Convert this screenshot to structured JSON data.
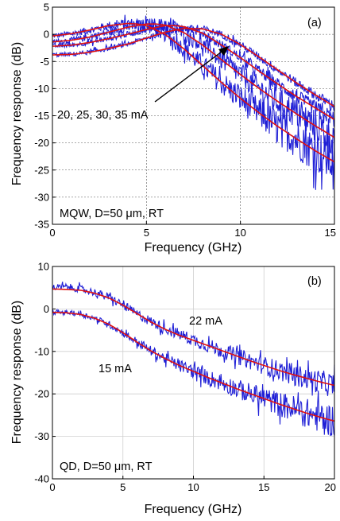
{
  "chart_data": [
    {
      "type": "line",
      "panel_label": "(a)",
      "xlabel": "Frequency (GHz)",
      "ylabel": "Frequency response (dB)",
      "xlim": [
        0,
        15
      ],
      "ylim": [
        -35,
        5
      ],
      "xticks": [
        "0",
        "5",
        "10",
        "15"
      ],
      "yticks": [
        "5",
        "0",
        "-5",
        "-10",
        "-15",
        "-20",
        "-25",
        "-30",
        "-35"
      ],
      "grid": "dashed",
      "annotations": {
        "currents": "20, 25, 30, 35 mA",
        "conditions": "MQW, D=50 μm, RT"
      },
      "colors": {
        "measured": "#1f1fd6",
        "fit": "#e01010"
      },
      "series": [
        {
          "kind": "fit",
          "x": [
            0,
            1,
            2,
            3,
            4,
            4.5,
            5,
            6,
            7,
            8,
            9,
            10,
            11,
            12,
            13,
            14,
            15
          ],
          "y": [
            -0.3,
            0.1,
            0.8,
            1.6,
            2.0,
            1.9,
            1.6,
            0.0,
            -2.7,
            -5.8,
            -8.9,
            -11.8,
            -14.5,
            -17.0,
            -19.3,
            -21.5,
            -23.5
          ]
        },
        {
          "kind": "fit",
          "x": [
            0,
            1,
            2,
            3,
            4,
            5,
            5.5,
            6,
            7,
            8,
            9,
            10,
            11,
            12,
            13,
            14,
            15
          ],
          "y": [
            -1.4,
            -1.1,
            -0.5,
            0.4,
            1.3,
            1.9,
            1.9,
            1.7,
            0.3,
            -2.0,
            -4.7,
            -7.4,
            -10.0,
            -12.4,
            -14.7,
            -16.9,
            -19.0
          ]
        },
        {
          "kind": "fit",
          "x": [
            0,
            1,
            2,
            3,
            4,
            5,
            6,
            6.5,
            7,
            8,
            9,
            10,
            11,
            12,
            13,
            14,
            15
          ],
          "y": [
            -2.2,
            -2.0,
            -1.5,
            -0.8,
            0.0,
            0.9,
            1.6,
            1.6,
            1.4,
            0.2,
            -2.0,
            -4.3,
            -6.8,
            -9.2,
            -11.5,
            -13.6,
            -15.7
          ]
        },
        {
          "kind": "fit",
          "x": [
            0,
            1,
            2,
            3,
            4,
            5,
            6,
            7,
            8,
            9,
            10,
            11,
            12,
            13,
            14,
            15
          ],
          "y": [
            -3.8,
            -3.7,
            -3.3,
            -2.6,
            -1.8,
            -0.7,
            0.4,
            1.1,
            1.0,
            0.0,
            -1.9,
            -4.2,
            -6.6,
            -9.0,
            -11.2,
            -13.3
          ]
        },
        {
          "kind": "measured",
          "noise": [
            0.5,
            4.5
          ],
          "x": [
            0,
            1,
            2,
            3,
            4,
            4.5,
            5,
            6,
            7,
            8,
            9,
            10,
            11,
            12,
            13,
            14,
            15
          ],
          "y": [
            -0.3,
            0.1,
            0.8,
            1.6,
            2.0,
            1.9,
            1.6,
            0.0,
            -2.7,
            -5.8,
            -8.9,
            -11.8,
            -14.5,
            -17.0,
            -19.3,
            -21.5,
            -23.5
          ]
        },
        {
          "kind": "measured",
          "noise": [
            0.5,
            3.5
          ],
          "x": [
            0,
            1,
            2,
            3,
            4,
            5,
            5.5,
            6,
            7,
            8,
            9,
            10,
            11,
            12,
            13,
            14,
            15
          ],
          "y": [
            -1.4,
            -1.1,
            -0.5,
            0.4,
            1.3,
            1.9,
            1.9,
            1.7,
            0.3,
            -2.0,
            -4.7,
            -7.4,
            -10.0,
            -12.4,
            -14.7,
            -16.9,
            -19.0
          ]
        },
        {
          "kind": "measured",
          "noise": [
            0.4,
            1.5
          ],
          "x": [
            0,
            1,
            2,
            3,
            4,
            5,
            6,
            6.5,
            7,
            8,
            9,
            10,
            11,
            12,
            13,
            14,
            15
          ],
          "y": [
            -2.2,
            -2.0,
            -1.5,
            -0.8,
            0.0,
            0.9,
            1.6,
            1.6,
            1.4,
            0.2,
            -2.0,
            -4.3,
            -6.8,
            -9.2,
            -11.5,
            -13.6,
            -15.7
          ]
        },
        {
          "kind": "measured",
          "noise": [
            0.4,
            1.0
          ],
          "x": [
            0,
            1,
            2,
            3,
            4,
            5,
            6,
            7,
            8,
            9,
            10,
            11,
            12,
            13,
            14,
            15
          ],
          "y": [
            -3.8,
            -3.7,
            -3.3,
            -2.6,
            -1.8,
            -0.7,
            0.4,
            1.1,
            1.0,
            0.0,
            -1.9,
            -4.2,
            -6.6,
            -9.0,
            -11.2,
            -13.3
          ]
        }
      ]
    },
    {
      "type": "line",
      "panel_label": "(b)",
      "xlabel": "Frequency (GHz)",
      "ylabel": "Frequency response (dB)",
      "xlim": [
        0,
        20
      ],
      "ylim": [
        -40,
        10
      ],
      "xticks": [
        "0",
        "5",
        "10",
        "15",
        "20"
      ],
      "yticks": [
        "10",
        "0",
        "-10",
        "-20",
        "-30",
        "-40"
      ],
      "grid": "solid",
      "annotations": {
        "upper_curve": "22 mA",
        "lower_curve": "15 mA",
        "conditions": "QD, D=50 μm, RT"
      },
      "colors": {
        "measured": "#1f1fd6",
        "fit": "#e01010"
      },
      "series": [
        {
          "kind": "fit",
          "x": [
            0,
            1,
            2,
            3,
            4,
            5,
            6,
            7,
            8,
            9,
            10,
            11,
            12,
            13,
            14,
            15,
            16,
            17,
            18,
            19,
            20
          ],
          "y": [
            4.7,
            4.6,
            4.4,
            3.7,
            2.6,
            0.9,
            -1.1,
            -3.1,
            -4.8,
            -6.2,
            -7.4,
            -8.6,
            -9.8,
            -11.0,
            -12.2,
            -13.3,
            -14.4,
            -15.4,
            -16.3,
            -17.2,
            -18.0
          ]
        },
        {
          "kind": "fit",
          "x": [
            0,
            1,
            2,
            3,
            4,
            5,
            6,
            7,
            8,
            9,
            10,
            11,
            12,
            13,
            14,
            15,
            16,
            17,
            18,
            19,
            20
          ],
          "y": [
            -0.8,
            -0.9,
            -1.3,
            -2.2,
            -3.6,
            -5.6,
            -7.8,
            -9.9,
            -11.7,
            -13.3,
            -14.7,
            -16.1,
            -17.4,
            -18.7,
            -19.9,
            -21.1,
            -22.3,
            -23.4,
            -24.5,
            -25.5,
            -26.4
          ]
        },
        {
          "kind": "measured",
          "noise": [
            0.8,
            3.0
          ],
          "x": [
            0,
            1,
            2,
            3,
            4,
            5,
            6,
            7,
            8,
            9,
            10,
            11,
            12,
            13,
            14,
            15,
            16,
            17,
            18,
            19,
            20
          ],
          "y": [
            5.0,
            5.2,
            4.7,
            3.9,
            2.7,
            0.9,
            -1.2,
            -3.0,
            -4.6,
            -6.0,
            -7.3,
            -8.6,
            -9.8,
            -11.0,
            -12.2,
            -13.3,
            -14.4,
            -15.4,
            -16.3,
            -17.2,
            -18.0
          ]
        },
        {
          "kind": "measured",
          "noise": [
            0.5,
            4.0
          ],
          "x": [
            0,
            1,
            2,
            3,
            4,
            5,
            6,
            7,
            8,
            9,
            10,
            11,
            12,
            13,
            14,
            15,
            16,
            17,
            18,
            19,
            20
          ],
          "y": [
            -0.8,
            -0.8,
            -1.2,
            -2.2,
            -3.6,
            -5.6,
            -7.8,
            -9.9,
            -11.7,
            -13.3,
            -14.7,
            -16.1,
            -17.4,
            -18.7,
            -19.9,
            -21.1,
            -22.3,
            -23.4,
            -24.5,
            -25.5,
            -26.4
          ]
        }
      ]
    }
  ]
}
